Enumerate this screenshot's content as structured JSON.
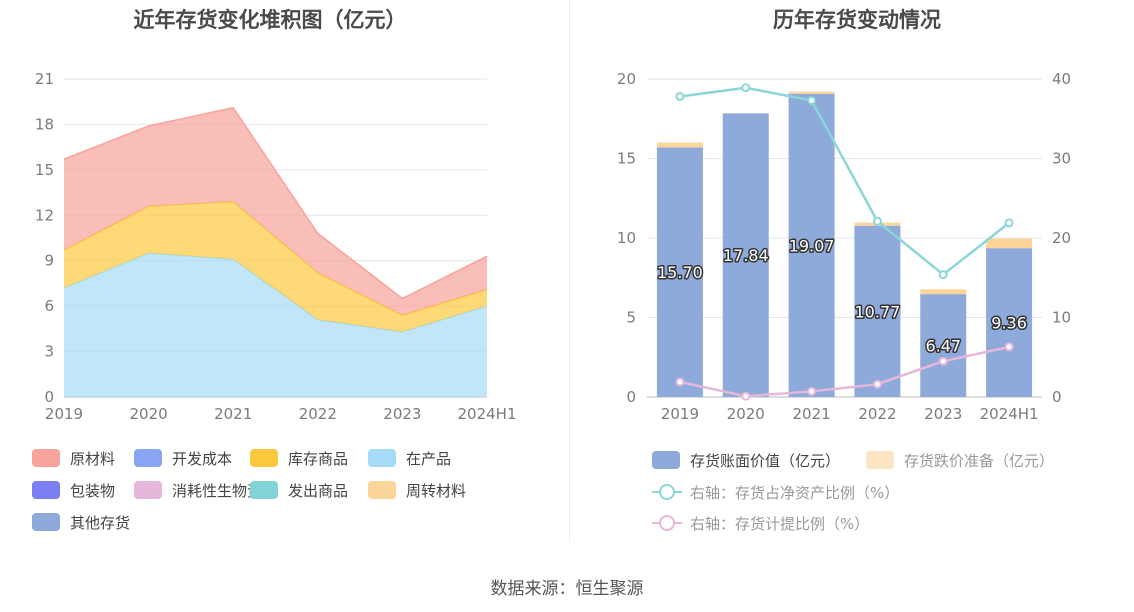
{
  "source": "数据来源：恒生聚源",
  "chart_data": [
    {
      "type": "area",
      "stacked": true,
      "title": "近年存货变化堆积图（亿元）",
      "categories": [
        "2019",
        "2020",
        "2021",
        "2022",
        "2023",
        "2024H1"
      ],
      "ylim": [
        0,
        21
      ],
      "yticks": [
        0,
        3,
        6,
        9,
        12,
        15,
        18,
        21
      ],
      "grid": true,
      "legend_position": "bottom",
      "series": [
        {
          "name": "在产品",
          "color": "#a6dbf7",
          "values": [
            7.2,
            9.5,
            9.1,
            5.1,
            4.3,
            6.0
          ]
        },
        {
          "name": "库存商品",
          "color": "#fcc93e",
          "values": [
            2.5,
            3.1,
            3.8,
            3.1,
            1.1,
            1.1
          ]
        },
        {
          "name": "原材料",
          "color": "#f8a39a",
          "values": [
            6.0,
            5.3,
            6.2,
            2.6,
            1.1,
            2.2
          ]
        },
        {
          "name": "开发成本",
          "color": "#8aa5f5",
          "values": [
            0,
            0,
            0,
            0,
            0,
            0
          ]
        },
        {
          "name": "包装物",
          "color": "#7b7ef0",
          "values": [
            0,
            0,
            0,
            0,
            0,
            0
          ]
        },
        {
          "name": "消耗性生物资产",
          "color": "#e6b7da",
          "values": [
            0,
            0,
            0,
            0,
            0,
            0
          ]
        },
        {
          "name": "发出商品",
          "color": "#82d3d5",
          "values": [
            0,
            0,
            0,
            0,
            0,
            0
          ]
        },
        {
          "name": "周转材料",
          "color": "#fdd598",
          "values": [
            0,
            0,
            0,
            0,
            0,
            0
          ]
        },
        {
          "name": "其他存货",
          "color": "#8eaadb",
          "values": [
            0,
            0,
            0,
            0,
            0,
            0
          ]
        }
      ],
      "legend": [
        {
          "name": "原材料",
          "color": "#f8a39a"
        },
        {
          "name": "开发成本",
          "color": "#8aa5f5"
        },
        {
          "name": "库存商品",
          "color": "#fcc93e"
        },
        {
          "name": "在产品",
          "color": "#a6dbf7"
        },
        {
          "name": "包装物",
          "color": "#7b7ef0"
        },
        {
          "name": "消耗性生物资产",
          "color": "#e6b7da"
        },
        {
          "name": "发出商品",
          "color": "#82d3d5"
        },
        {
          "name": "周转材料",
          "color": "#fdd598"
        },
        {
          "name": "其他存货",
          "color": "#8eaadb"
        }
      ]
    },
    {
      "type": "bar",
      "stacked": true,
      "title": "历年存货变动情况",
      "categories": [
        "2019",
        "2020",
        "2021",
        "2022",
        "2023",
        "2024H1"
      ],
      "ylim": [
        0,
        20
      ],
      "yticks": [
        0,
        5,
        10,
        15,
        20
      ],
      "y2lim": [
        0,
        40
      ],
      "y2ticks": [
        0,
        10,
        20,
        30,
        40
      ],
      "grid": true,
      "legend_position": "bottom",
      "series": [
        {
          "name": "存货账面价值（亿元）",
          "type": "bar",
          "color": "#8eaadb",
          "values": [
            15.7,
            17.84,
            19.07,
            10.77,
            6.47,
            9.36
          ],
          "labels": [
            "15.70",
            "17.84",
            "19.07",
            "10.77",
            "6.47",
            "9.36"
          ]
        },
        {
          "name": "存货跌价准备（亿元）",
          "type": "bar",
          "color": "#fdd598",
          "legend_color": "#fde5c3",
          "values": [
            0.3,
            0.01,
            0.13,
            0.2,
            0.3,
            0.6
          ]
        },
        {
          "name": "右轴：存货占净资产比例（%）",
          "type": "line",
          "axis": "right",
          "color": "#8bd6d8",
          "values": [
            37.8,
            38.9,
            37.3,
            22.1,
            15.4,
            21.9
          ]
        },
        {
          "name": "右轴：存货计提比例（%）",
          "type": "line",
          "axis": "right",
          "color": "#e6b7da",
          "values": [
            1.9,
            0.1,
            0.7,
            1.6,
            4.5,
            6.3
          ]
        }
      ]
    }
  ]
}
